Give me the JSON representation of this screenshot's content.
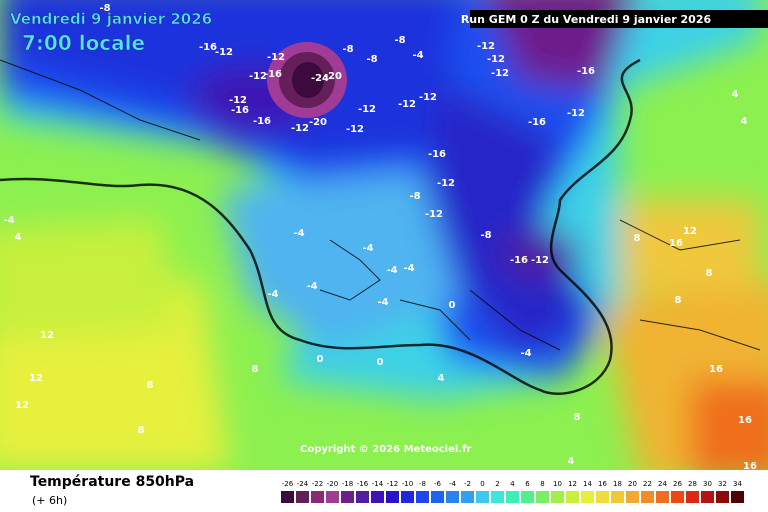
{
  "header": {
    "date": "Vendredi 9 janvier 2026",
    "time": "7:00 locale",
    "run": "Run GEM 0 Z du Vendredi 9 janvier 2026"
  },
  "map": {
    "isotherm_labels": [
      -8,
      -16,
      -12,
      -12,
      -16,
      -12,
      -24,
      -20,
      -12,
      -16,
      -16,
      -12,
      -20,
      -12,
      -12,
      -8,
      -8,
      -12,
      -12,
      -4,
      -8,
      -12,
      -12,
      -12,
      -16,
      -12,
      -16,
      -16,
      -12,
      -8,
      -12,
      -8,
      -16,
      -12,
      -4,
      -4,
      -4,
      -4,
      -4,
      -4,
      -4,
      0,
      0,
      0,
      -4,
      4,
      8,
      8,
      12,
      12,
      12,
      8,
      -4,
      4,
      8,
      8,
      16,
      16,
      16,
      8,
      4,
      4,
      4,
      12,
      16,
      8
    ],
    "copyright": "Copyright © 2026 Meteociel.fr"
  },
  "legend": {
    "title": "Température 850hPa",
    "lead_time": "(+ 6h)",
    "scale": [
      -26,
      -24,
      -22,
      -20,
      -18,
      -16,
      -14,
      -12,
      -10,
      -8,
      -6,
      -4,
      -2,
      0,
      2,
      4,
      6,
      8,
      10,
      12,
      14,
      16,
      18,
      20,
      22,
      24,
      26,
      28,
      30,
      32,
      34
    ],
    "colors": [
      "#3c0a3c",
      "#641e5a",
      "#8c2878",
      "#a03c96",
      "#6e1e8c",
      "#501ea0",
      "#3c14b4",
      "#2814c8",
      "#1e28dc",
      "#1e46f0",
      "#1e64f0",
      "#2882f0",
      "#32a0f0",
      "#3cc8f0",
      "#3ce6dc",
      "#3cf0b4",
      "#50f08c",
      "#78f064",
      "#a0f046",
      "#c8f03c",
      "#e6f03c",
      "#f0dc3c",
      "#f0c83c",
      "#f0aa32",
      "#f08c28",
      "#f06e1e",
      "#f04614",
      "#dc2814",
      "#b41414",
      "#8c0a0a",
      "#500000"
    ]
  }
}
